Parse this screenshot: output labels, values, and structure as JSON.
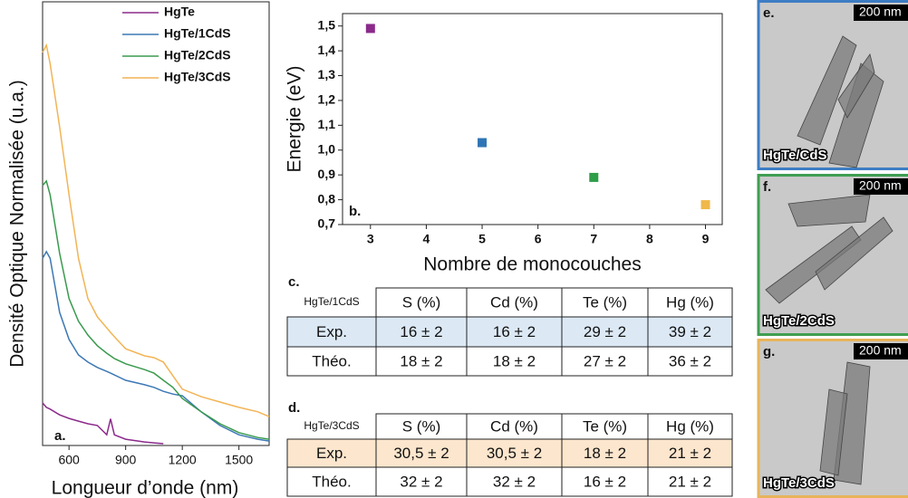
{
  "chart_data": [
    {
      "type": "line",
      "ylabel": "Densité Optique Normalisée (u.a.)",
      "xlabel": "Longueur d’onde (nm)",
      "annotation": "a.",
      "x": [
        460,
        480,
        500,
        550,
        600,
        650,
        700,
        750,
        800,
        820,
        840,
        900,
        1000,
        1050,
        1100,
        1150,
        1200,
        1300,
        1400,
        1500,
        1600,
        1660
      ],
      "series": [
        {
          "name": "HgTe",
          "color": "#8b2a8b",
          "values": [
            0.096,
            0.086,
            0.082,
            0.069,
            0.061,
            0.055,
            0.049,
            0.045,
            0.024,
            0.06,
            0.024,
            0.014,
            0.008,
            0.006,
            0.004,
            null,
            null,
            null,
            null,
            null,
            null,
            null
          ]
        },
        {
          "name": "HgTe/1CdS",
          "color": "#3c78b4",
          "values": [
            0.422,
            0.437,
            0.422,
            0.3,
            0.239,
            0.204,
            0.188,
            0.176,
            0.167,
            0.163,
            0.159,
            0.147,
            0.137,
            0.131,
            0.122,
            0.116,
            0.112,
            0.076,
            0.045,
            0.024,
            0.014,
            0.01
          ]
        },
        {
          "name": "HgTe/2CdS",
          "color": "#3a9a4e",
          "values": [
            0.586,
            0.596,
            0.565,
            0.433,
            0.331,
            0.28,
            0.249,
            0.225,
            0.208,
            0.202,
            0.196,
            0.184,
            0.171,
            0.163,
            0.147,
            0.131,
            0.106,
            0.076,
            0.049,
            0.029,
            0.018,
            0.014
          ]
        },
        {
          "name": "HgTe/3CdS",
          "color": "#f2b455",
          "values": [
            0.886,
            0.902,
            0.861,
            0.718,
            0.565,
            0.422,
            0.331,
            0.29,
            0.265,
            0.255,
            0.245,
            0.218,
            0.202,
            0.198,
            0.188,
            0.157,
            0.127,
            0.11,
            0.098,
            0.086,
            0.076,
            0.065
          ]
        }
      ],
      "xlim": [
        460,
        1660
      ],
      "xticks": [
        600,
        900,
        1200,
        1500
      ],
      "ylim": [
        0,
        1
      ]
    },
    {
      "type": "scatter",
      "ylabel": "Energie (eV)",
      "xlabel": "Nombre de monocouches",
      "annotation": "b.",
      "x": [
        3,
        5,
        7,
        9
      ],
      "values": [
        1.49,
        1.03,
        0.89,
        0.78
      ],
      "colors": [
        "#8b2a8b",
        "#2f75b5",
        "#2e9e48",
        "#f0b74a"
      ],
      "xlim": [
        2.5,
        9.3
      ],
      "xticks": [
        3,
        4,
        5,
        6,
        7,
        8,
        9
      ],
      "ylim": [
        0.7,
        1.55
      ],
      "yticks": [
        {
          "value": 0.7,
          "label": "0,7"
        },
        {
          "value": 0.8,
          "label": "0,8"
        },
        {
          "value": 0.9,
          "label": "0,9"
        },
        {
          "value": 1.0,
          "label": "1,0"
        },
        {
          "value": 1.1,
          "label": "1,1"
        },
        {
          "value": 1.2,
          "label": "1,2"
        },
        {
          "value": 1.3,
          "label": "1,3"
        },
        {
          "value": 1.4,
          "label": "1,4"
        },
        {
          "value": 1.5,
          "label": "1,5"
        }
      ]
    }
  ],
  "tables": [
    {
      "panel": "c.",
      "corner": "HgTe/1CdS",
      "header": [
        "S (%)",
        "Cd (%)",
        "Te (%)",
        "Hg (%)"
      ],
      "rows": [
        [
          "Exp.",
          "16 ± 2",
          "16 ± 2",
          "29 ± 2",
          "39 ± 2"
        ],
        [
          "Théo.",
          "18 ± 2",
          "18 ± 2",
          "27 ± 2",
          "36 ± 2"
        ]
      ],
      "highlight": "#dce9f5"
    },
    {
      "panel": "d.",
      "corner": "HgTe/3CdS",
      "header": [
        "S (%)",
        "Cd (%)",
        "Te (%)",
        "Hg (%)"
      ],
      "rows": [
        [
          "Exp.",
          "30,5 ± 2",
          "30,5 ± 2",
          "18 ± 2",
          "21 ± 2"
        ],
        [
          "Théo.",
          "32 ± 2",
          "32 ± 2",
          "16 ± 2",
          "21 ± 2"
        ]
      ],
      "highlight": "#fce6cd"
    }
  ],
  "micrographs": [
    {
      "panel": "e.",
      "scale": "200 nm",
      "label": "HgTe/CdS",
      "border": "#3d7dc4"
    },
    {
      "panel": "f.",
      "scale": "200 nm",
      "label": "HgTe/2CdS",
      "border": "#3f9e52"
    },
    {
      "panel": "g.",
      "scale": "200 nm",
      "label": "HgTe/3CdS",
      "border": "#e7b45c"
    }
  ]
}
